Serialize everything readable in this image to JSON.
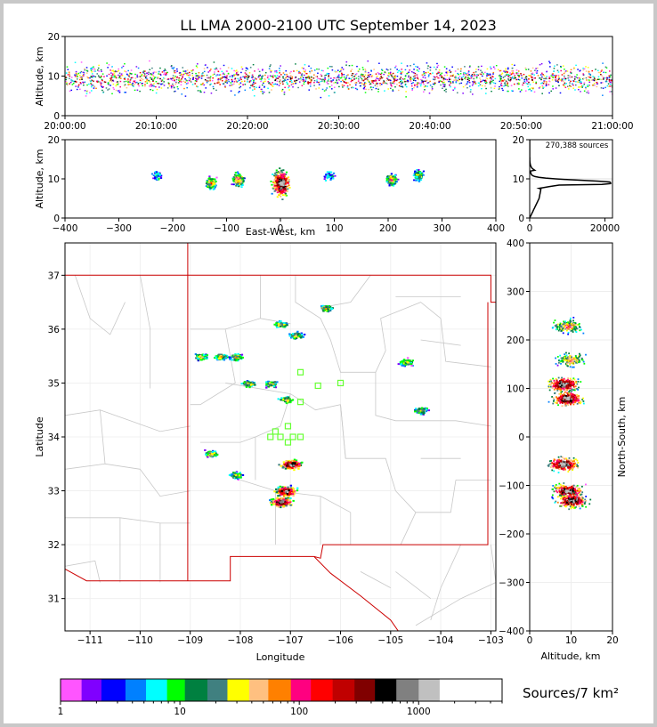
{
  "title": "LL LMA 2000-2100 UTC September 14, 2023",
  "colors": {
    "colorbar": [
      "#ff55ff",
      "#8000ff",
      "#0000ff",
      "#0080ff",
      "#00ffff",
      "#00ff00",
      "#008040",
      "#408080",
      "#ffff00",
      "#ffc080",
      "#ff8000",
      "#ff0080",
      "#ff0000",
      "#c00000",
      "#800000",
      "#000000",
      "#808080",
      "#c0c0c0",
      "#ffffff"
    ],
    "state_border": "#cc0000",
    "county_border": "#c8c8c8",
    "marker": "#66ff33"
  },
  "time_panel": {
    "ylabel": "Altitude, km",
    "ylim": [
      0,
      20
    ],
    "yticks": [
      "0",
      "10",
      "20"
    ],
    "xticks": [
      "20:00:00",
      "20:10:00",
      "20:20:00",
      "20:30:00",
      "20:40:00",
      "20:50:00",
      "21:00:00"
    ]
  },
  "ew_panel": {
    "ylabel": "Altitude, km",
    "xlabel": "East-West, km",
    "yticks": [
      "0",
      "10",
      "20"
    ],
    "xticks": [
      "−400",
      "−300",
      "−200",
      "−100",
      "0",
      "100",
      "200",
      "300",
      "400"
    ]
  },
  "hist_panel": {
    "label": "270,388 sources",
    "yticks": [
      "0",
      "10",
      "20"
    ],
    "xticks": [
      "0",
      "20000"
    ]
  },
  "map_panel": {
    "xlabel": "Longitude",
    "ylabel": "Latitude",
    "xticks": [
      "−111",
      "−110",
      "−109",
      "−108",
      "−107",
      "−106",
      "−105",
      "−104",
      "−103"
    ],
    "yticks": [
      "31",
      "32",
      "33",
      "34",
      "35",
      "36",
      "37"
    ]
  },
  "ns_panel": {
    "ylabel": "North-South, km",
    "xlabel": "Altitude, km",
    "yticks": [
      "400",
      "300",
      "200",
      "100",
      "0",
      "−100",
      "−200",
      "−300",
      "−400"
    ],
    "xticks": [
      "0",
      "10",
      "20"
    ]
  },
  "colorbar": {
    "label": "Sources/7 km²",
    "ticks": [
      "1",
      "10",
      "100",
      "1000"
    ]
  },
  "chart_data": [
    {
      "type": "scatter",
      "name": "time-height",
      "ylabel": "Altitude, km",
      "ylim": [
        0,
        20
      ],
      "xlim": [
        "20:00:00",
        "21:00:00"
      ],
      "altitude_band_km": [
        6,
        13
      ],
      "peak_altitude_km": 10
    },
    {
      "type": "heatmap",
      "name": "east-west vs altitude",
      "xlabel": "East-West, km",
      "ylabel": "Altitude, km",
      "xlim": [
        -400,
        400
      ],
      "ylim": [
        0,
        20
      ],
      "clusters": [
        {
          "x": -230,
          "y": 11,
          "weight": 0.15
        },
        {
          "x": -130,
          "y": 9,
          "weight": 0.5
        },
        {
          "x": -80,
          "y": 10,
          "weight": 0.6
        },
        {
          "x": 0,
          "y": 9,
          "weight": 1.0
        },
        {
          "x": 90,
          "y": 11,
          "weight": 0.15
        },
        {
          "x": 205,
          "y": 10,
          "weight": 0.5
        },
        {
          "x": 255,
          "y": 11,
          "weight": 0.35
        }
      ]
    },
    {
      "type": "line",
      "name": "altitude histogram",
      "label": "270,388 sources",
      "xlim": [
        0,
        22000
      ],
      "ylim": [
        0,
        20
      ],
      "peak_altitude_km": 9,
      "peak_count": 21000
    },
    {
      "type": "heatmap",
      "name": "plan view",
      "xlabel": "Longitude",
      "ylabel": "Latitude",
      "xlim": [
        -111.5,
        -102.9
      ],
      "ylim": [
        30.4,
        37.6
      ],
      "clusters": [
        {
          "lon": -108.8,
          "lat": 35.5
        },
        {
          "lon": -108.4,
          "lat": 35.5
        },
        {
          "lon": -108.1,
          "lat": 35.5
        },
        {
          "lon": -107.85,
          "lat": 35.0
        },
        {
          "lon": -107.4,
          "lat": 35.0
        },
        {
          "lon": -107.1,
          "lat": 34.7
        },
        {
          "lon": -107.2,
          "lat": 36.1
        },
        {
          "lon": -106.9,
          "lat": 35.9
        },
        {
          "lon": -106.3,
          "lat": 36.4
        },
        {
          "lon": -104.7,
          "lat": 35.4
        },
        {
          "lon": -104.4,
          "lat": 34.5
        },
        {
          "lon": -108.6,
          "lat": 33.7
        },
        {
          "lon": -108.1,
          "lat": 33.3
        },
        {
          "lon": -107.0,
          "lat": 33.5
        },
        {
          "lon": -107.1,
          "lat": 33.0
        },
        {
          "lon": -107.2,
          "lat": 32.8
        }
      ],
      "stations": [
        {
          "lon": -107.3,
          "lat": 34.1
        },
        {
          "lon": -107.05,
          "lat": 34.2
        },
        {
          "lon": -107.2,
          "lat": 34.0
        },
        {
          "lon": -106.95,
          "lat": 34.0
        },
        {
          "lon": -107.05,
          "lat": 33.9
        },
        {
          "lon": -107.4,
          "lat": 34.0
        },
        {
          "lon": -106.8,
          "lat": 34.0
        },
        {
          "lon": -106.8,
          "lat": 35.2
        },
        {
          "lon": -106.45,
          "lat": 34.95
        },
        {
          "lon": -106.0,
          "lat": 35.0
        },
        {
          "lon": -106.8,
          "lat": 34.65
        }
      ]
    },
    {
      "type": "heatmap",
      "name": "altitude vs north-south",
      "xlabel": "Altitude, km",
      "ylabel": "North-South, km",
      "xlim": [
        0,
        20
      ],
      "ylim": [
        -400,
        400
      ],
      "clusters": [
        {
          "x": 9,
          "y": 230
        },
        {
          "x": 10,
          "y": 160
        },
        {
          "x": 8,
          "y": 110
        },
        {
          "x": 9,
          "y": 80
        },
        {
          "x": 8,
          "y": -55
        },
        {
          "x": 9,
          "y": -110
        },
        {
          "x": 10,
          "y": -130
        }
      ]
    }
  ]
}
